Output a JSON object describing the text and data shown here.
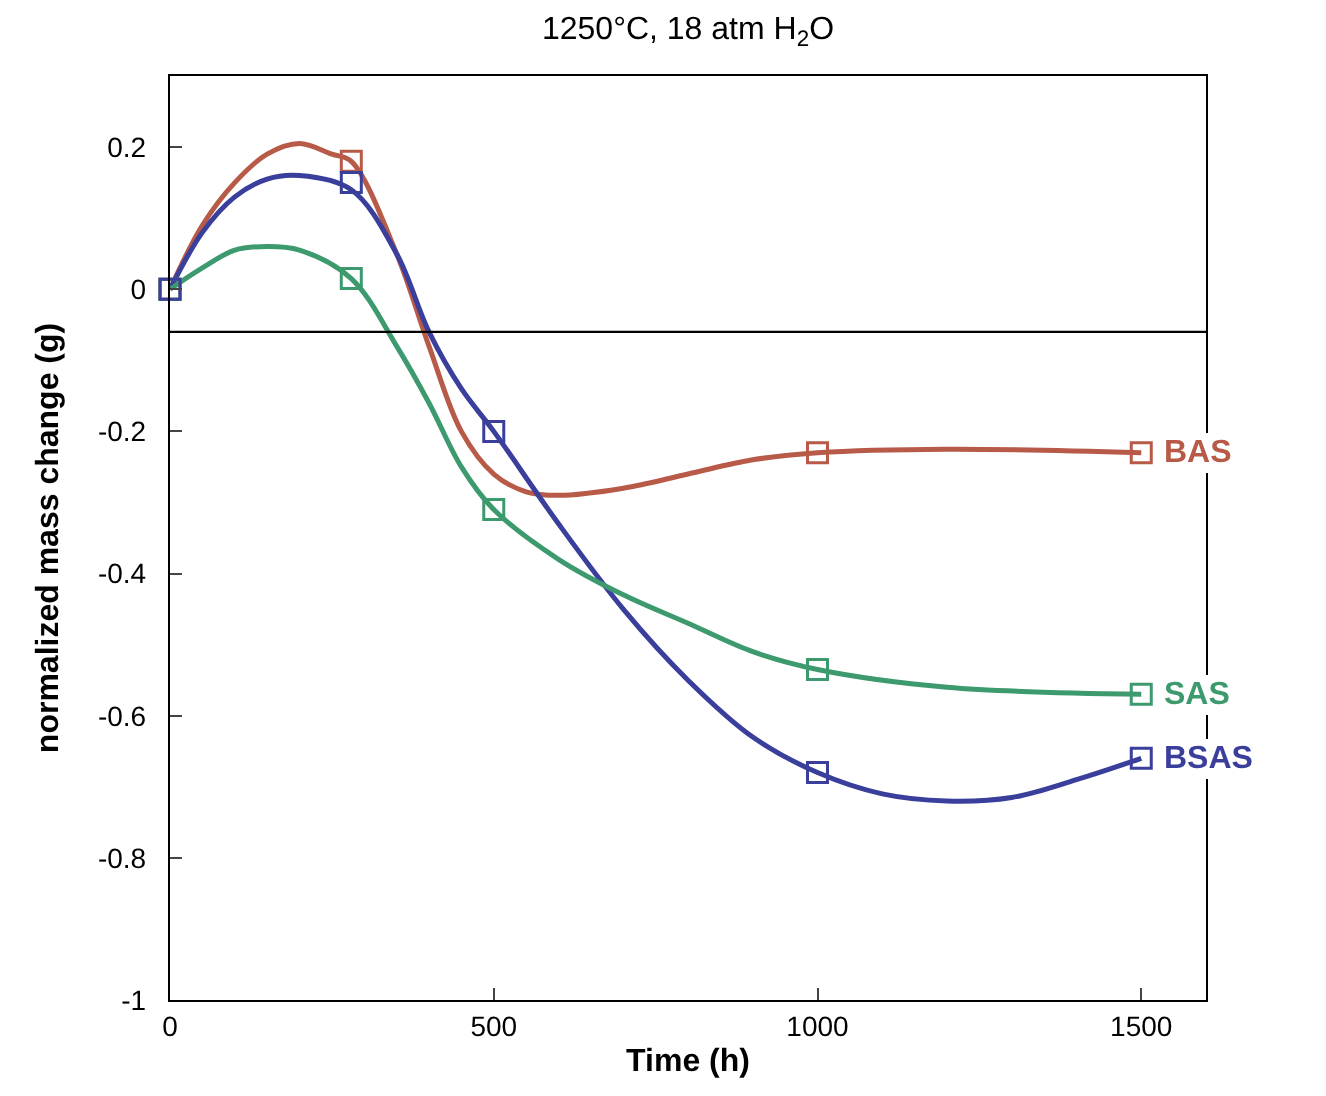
{
  "chart_data": {
    "type": "line",
    "title": "1250°C, 18 atm H$_{2}$O",
    "xlabel": "Time (h)",
    "ylabel": "normalized mass change (g)",
    "xlim": [
      0,
      1600
    ],
    "xticks": [
      0,
      500,
      1000,
      1500
    ],
    "ylim": [
      -1,
      0.3
    ],
    "yticks": [
      0.2,
      0,
      -0.2,
      -0.4,
      -0.6,
      -0.8,
      -1
    ],
    "marker": "square",
    "ref_lines": [
      {
        "axis": "y",
        "value": -0.06,
        "color": "#000000"
      }
    ],
    "series": [
      {
        "marker": "none",
        "color": "#b85a48",
        "x": [
          0,
          50,
          100,
          150,
          200,
          250,
          280,
          350,
          400,
          450,
          500,
          550,
          600,
          700,
          800,
          900,
          1000,
          1200,
          1500
        ],
        "values": [
          0,
          0.09,
          0.15,
          0.19,
          0.205,
          0.19,
          0.18,
          0.05,
          -0.08,
          -0.2,
          -0.26,
          -0.285,
          -0.29,
          -0.28,
          -0.26,
          -0.24,
          -0.23,
          -0.225,
          -0.23
        ]
      },
      {
        "marker": "none",
        "color": "#3a3f9c",
        "x": [
          0,
          50,
          100,
          150,
          200,
          280,
          350,
          400,
          450,
          500,
          600,
          700,
          800,
          900,
          1000,
          1100,
          1200,
          1300,
          1400,
          1500
        ],
        "values": [
          0,
          0.08,
          0.13,
          0.155,
          0.16,
          0.14,
          0.05,
          -0.06,
          -0.14,
          -0.2,
          -0.33,
          -0.45,
          -0.55,
          -0.63,
          -0.68,
          -0.71,
          -0.72,
          -0.715,
          -0.69,
          -0.66
        ]
      },
      {
        "marker": "none",
        "color": "#3d9a6e",
        "x": [
          0,
          50,
          100,
          150,
          200,
          280,
          350,
          400,
          450,
          500,
          600,
          700,
          800,
          900,
          1000,
          1200,
          1500
        ],
        "values": [
          0,
          0.03,
          0.055,
          0.06,
          0.055,
          0.015,
          -0.08,
          -0.16,
          -0.25,
          -0.31,
          -0.38,
          -0.43,
          -0.47,
          -0.51,
          -0.535,
          -0.56,
          -0.57
        ]
      },
      {
        "type": "scatter",
        "name": "BAS",
        "color": "#b85a48",
        "x": [
          0,
          280,
          1000,
          1500
        ],
        "values": [
          0,
          0.18,
          -0.23,
          -0.23
        ]
      },
      {
        "type": "scatter",
        "name": "SAS",
        "color": "#3d9a6e",
        "x": [
          0,
          280,
          500,
          1000,
          1500
        ],
        "values": [
          0,
          0.015,
          -0.31,
          -0.535,
          -0.57
        ]
      },
      {
        "type": "scatter",
        "name": "BSAS",
        "color": "#3a3f9c",
        "x": [
          0,
          280,
          500,
          1000,
          1500
        ],
        "values": [
          0,
          0.15,
          -0.2,
          -0.68,
          -0.66
        ]
      }
    ]
  }
}
